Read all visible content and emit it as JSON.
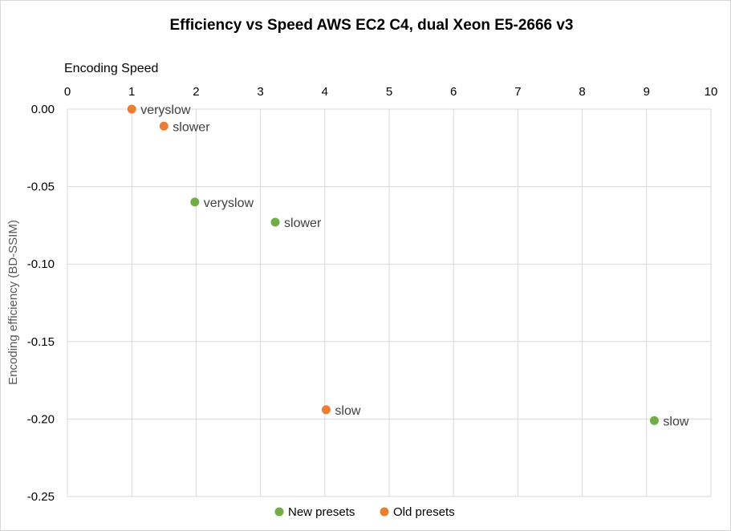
{
  "chart_data": {
    "type": "scatter",
    "title": "Efficiency vs Speed AWS EC2 C4, dual Xeon E5-2666 v3",
    "xlabel": "Encoding Speed",
    "ylabel": "Encoding efficiency  (BD-SSIM)",
    "xlim": [
      0,
      10
    ],
    "ylim": [
      -0.25,
      0
    ],
    "x_ticks": [
      0,
      1,
      2,
      3,
      4,
      5,
      6,
      7,
      8,
      9,
      10
    ],
    "y_ticks": [
      0.0,
      -0.05,
      -0.1,
      -0.15,
      -0.2,
      -0.25
    ],
    "y_tick_labels": [
      "0.00",
      "-0.05",
      "-0.10",
      "-0.15",
      "-0.20",
      "-0.25"
    ],
    "x_axis_position": "top",
    "grid": true,
    "legend": "bottom",
    "series": [
      {
        "name": "New presets",
        "color": "#70ad47",
        "points": [
          {
            "x": 1.98,
            "y": -0.06,
            "label": "veryslow"
          },
          {
            "x": 3.23,
            "y": -0.073,
            "label": "slower"
          },
          {
            "x": 9.12,
            "y": -0.201,
            "label": "slow"
          }
        ]
      },
      {
        "name": "Old presets",
        "color": "#ed7d31",
        "points": [
          {
            "x": 1.0,
            "y": 0.0,
            "label": "veryslow"
          },
          {
            "x": 1.5,
            "y": -0.011,
            "label": "slower"
          },
          {
            "x": 4.02,
            "y": -0.194,
            "label": "slow"
          }
        ]
      }
    ]
  }
}
